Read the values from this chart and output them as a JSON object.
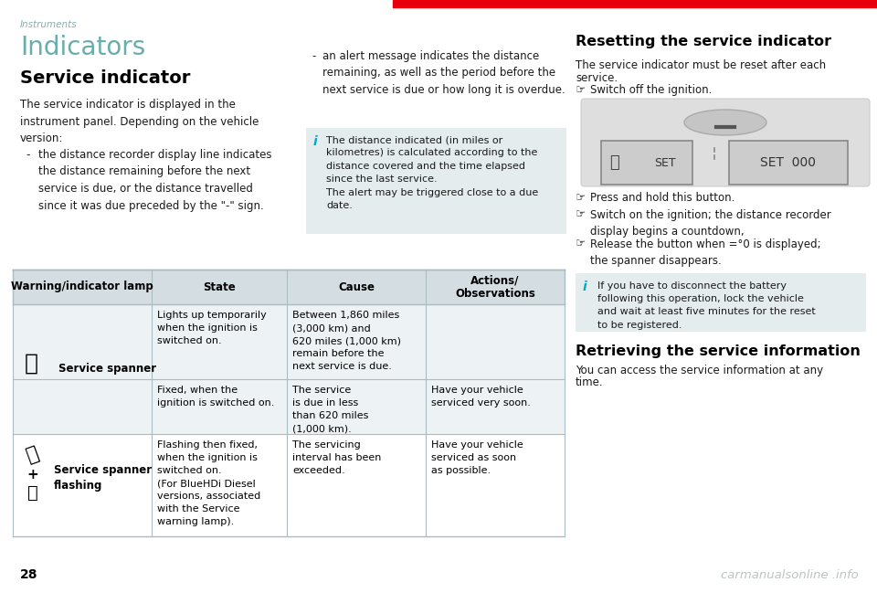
{
  "page_num": "28",
  "watermark": "carmanualsonline .info",
  "header_text": "Instruments",
  "red_line_color": "#e8000d",
  "header_text_color": "#8aadad",
  "bg_color": "#ffffff",
  "title_indicators": "Indicators",
  "title_indicators_color": "#6aadad",
  "title_service": "Service indicator",
  "body_text_color": "#1a1a1a",
  "info_box_bg": "#e5ecee",
  "info_box_color": "#00aacc",
  "table_header_bg": "#d4dee2",
  "table_row_bg1": "#edf2f4",
  "table_row_bg2": "#ffffff",
  "table_border_color": "#aabbc2",
  "para1": "The service indicator is displayed in the\ninstrument panel. Depending on the vehicle\nversion:",
  "bullet1_dash": "-",
  "bullet1": "the distance recorder display line indicates\nthe distance remaining before the next\nservice is due, or the distance travelled\nsince it was due preceded by the \"-\" sign.",
  "bullet2_dash": "-",
  "bullet2": "an alert message indicates the distance\nremaining, as well as the period before the\nnext service is due or how long it is overdue.",
  "info_box_text_line1": "The distance indicated (in miles or",
  "info_box_text_line2": "kilometres) is calculated according to the",
  "info_box_text_line3": "distance covered and the time elapsed",
  "info_box_text_line4": "since the last service.",
  "info_box_text_line5": "The alert may be triggered close to a due",
  "info_box_text_line6": "date.",
  "right_heading1": "Resetting the service indicator",
  "right_para1a": "The service indicator must be reset after each",
  "right_para1b": "service.",
  "right_bullet0": "Switch off the ignition.",
  "right_bullets": [
    "Press and hold this button.",
    "Switch on the ignition; the distance recorder\ndisplay begins a countdown,",
    "Release the button when =°0 is displayed;\nthe spanner disappears."
  ],
  "info_box2_lines": [
    "If you have to disconnect the battery",
    "following this operation, lock the vehicle",
    "and wait at least five minutes for the reset",
    "to be registered."
  ],
  "right_heading2": "Retrieving the service information",
  "right_para2a": "You can access the service information at any",
  "right_para2b": "time.",
  "tbl_h0": "Warning/indicator lamp",
  "tbl_h1": "State",
  "tbl_h2": "Cause",
  "tbl_h3a": "Actions/",
  "tbl_h3b": "Observations",
  "row1_lamp": "Service spanner",
  "row1_state": "Lights up temporarily\nwhen the ignition is\nswitched on.",
  "row1_cause": "Between 1,860 miles\n(3,000 km) and\n620 miles (1,000 km)\nremain before the\nnext service is due.",
  "row1_obs": "",
  "row2_state": "Fixed, when the\nignition is switched on.",
  "row2_cause": "The service\nis due in less\nthan 620 miles\n(1,000 km).",
  "row2_obs": "Have your vehicle\nserviced very soon.",
  "row3_lamp": "Service spanner\nflashing",
  "row3_state": "Flashing then fixed,\nwhen the ignition is\nswitched on.\n(For BlueHDi Diesel\nversions, associated\nwith the Service\nwarning lamp).",
  "row3_cause": "The servicing\ninterval has been\nexceeded.",
  "row3_obs": "Have your vehicle\nserviced as soon\nas possible."
}
